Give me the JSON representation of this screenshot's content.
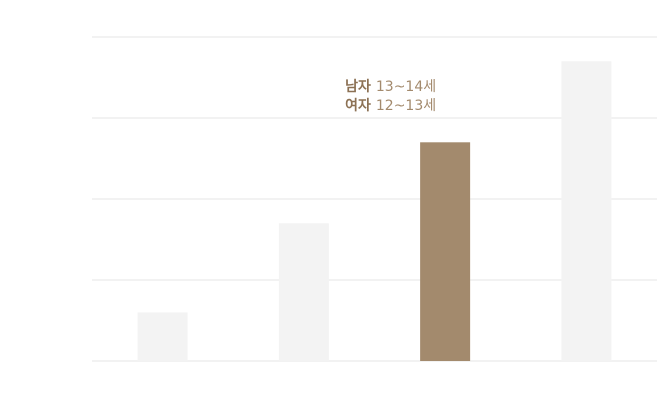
{
  "chart_data": {
    "type": "bar",
    "categories": [
      null,
      null,
      null,
      null
    ],
    "values": [
      0.6,
      1.7,
      2.7,
      3.7
    ],
    "colors": [
      "#f3f3f3",
      "#f3f3f3",
      "#a38a6d",
      "#f3f3f3"
    ],
    "ylim": [
      0,
      4
    ],
    "yticks": [
      0,
      1,
      2,
      3,
      4
    ],
    "grid": true,
    "annotations": [
      {
        "label": "남자",
        "text": "13~14세"
      },
      {
        "label": "여자",
        "text": "12~13세"
      }
    ]
  }
}
